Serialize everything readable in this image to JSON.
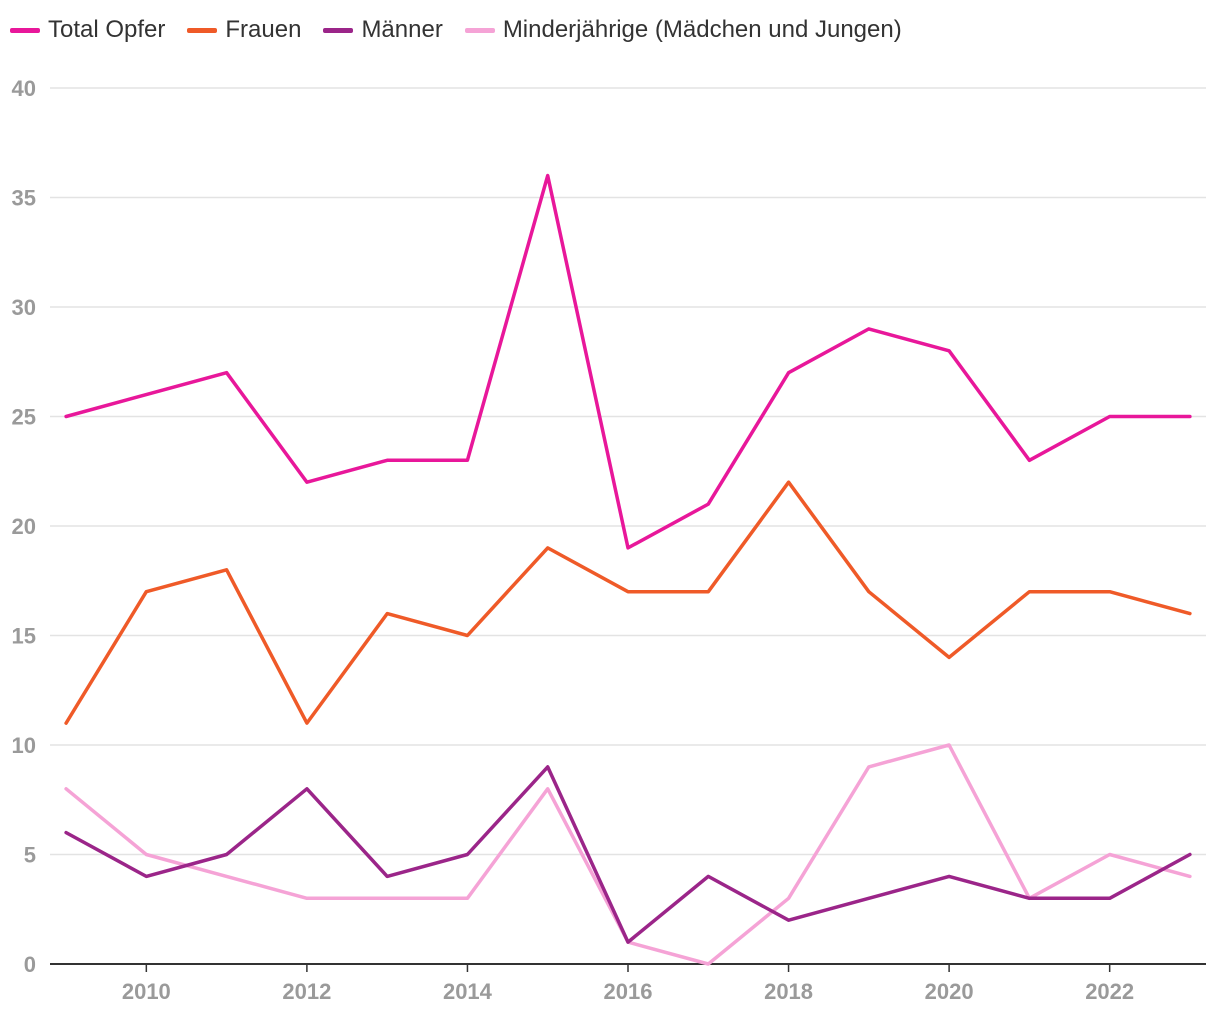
{
  "chart_data": {
    "type": "line",
    "x": [
      2009,
      2010,
      2011,
      2012,
      2013,
      2014,
      2015,
      2016,
      2017,
      2018,
      2019,
      2020,
      2021,
      2022,
      2023
    ],
    "x_tick_labels": [
      "2010",
      "2012",
      "2014",
      "2016",
      "2018",
      "2020",
      "2022"
    ],
    "x_tick_values": [
      2010,
      2012,
      2014,
      2016,
      2018,
      2020,
      2022
    ],
    "y_tick_labels": [
      "0",
      "5",
      "10",
      "15",
      "20",
      "25",
      "30",
      "35",
      "40"
    ],
    "y_tick_values": [
      0,
      5,
      10,
      15,
      20,
      25,
      30,
      35,
      40
    ],
    "xlim": [
      2008.8,
      2023.2
    ],
    "ylim": [
      0,
      40
    ],
    "grid": true,
    "legend_position": "top-left",
    "series": [
      {
        "name": "Total Opfer",
        "color": "#e8179a",
        "values": [
          25,
          26,
          27,
          22,
          23,
          23,
          36,
          19,
          21,
          27,
          29,
          28,
          23,
          25,
          25
        ]
      },
      {
        "name": "Frauen",
        "color": "#ef5a28",
        "values": [
          11,
          17,
          18,
          11,
          16,
          15,
          19,
          17,
          17,
          22,
          17,
          14,
          17,
          17,
          16
        ]
      },
      {
        "name": "Männer",
        "color": "#9b2589",
        "values": [
          6,
          4,
          5,
          8,
          4,
          5,
          9,
          1,
          4,
          2,
          3,
          4,
          3,
          3,
          5
        ]
      },
      {
        "name": "Minderjährige (Mädchen und Jungen)",
        "color": "#f5a3d6",
        "values": [
          8,
          5,
          4,
          3,
          3,
          3,
          8,
          1,
          0,
          3,
          9,
          10,
          3,
          5,
          4
        ]
      }
    ]
  }
}
